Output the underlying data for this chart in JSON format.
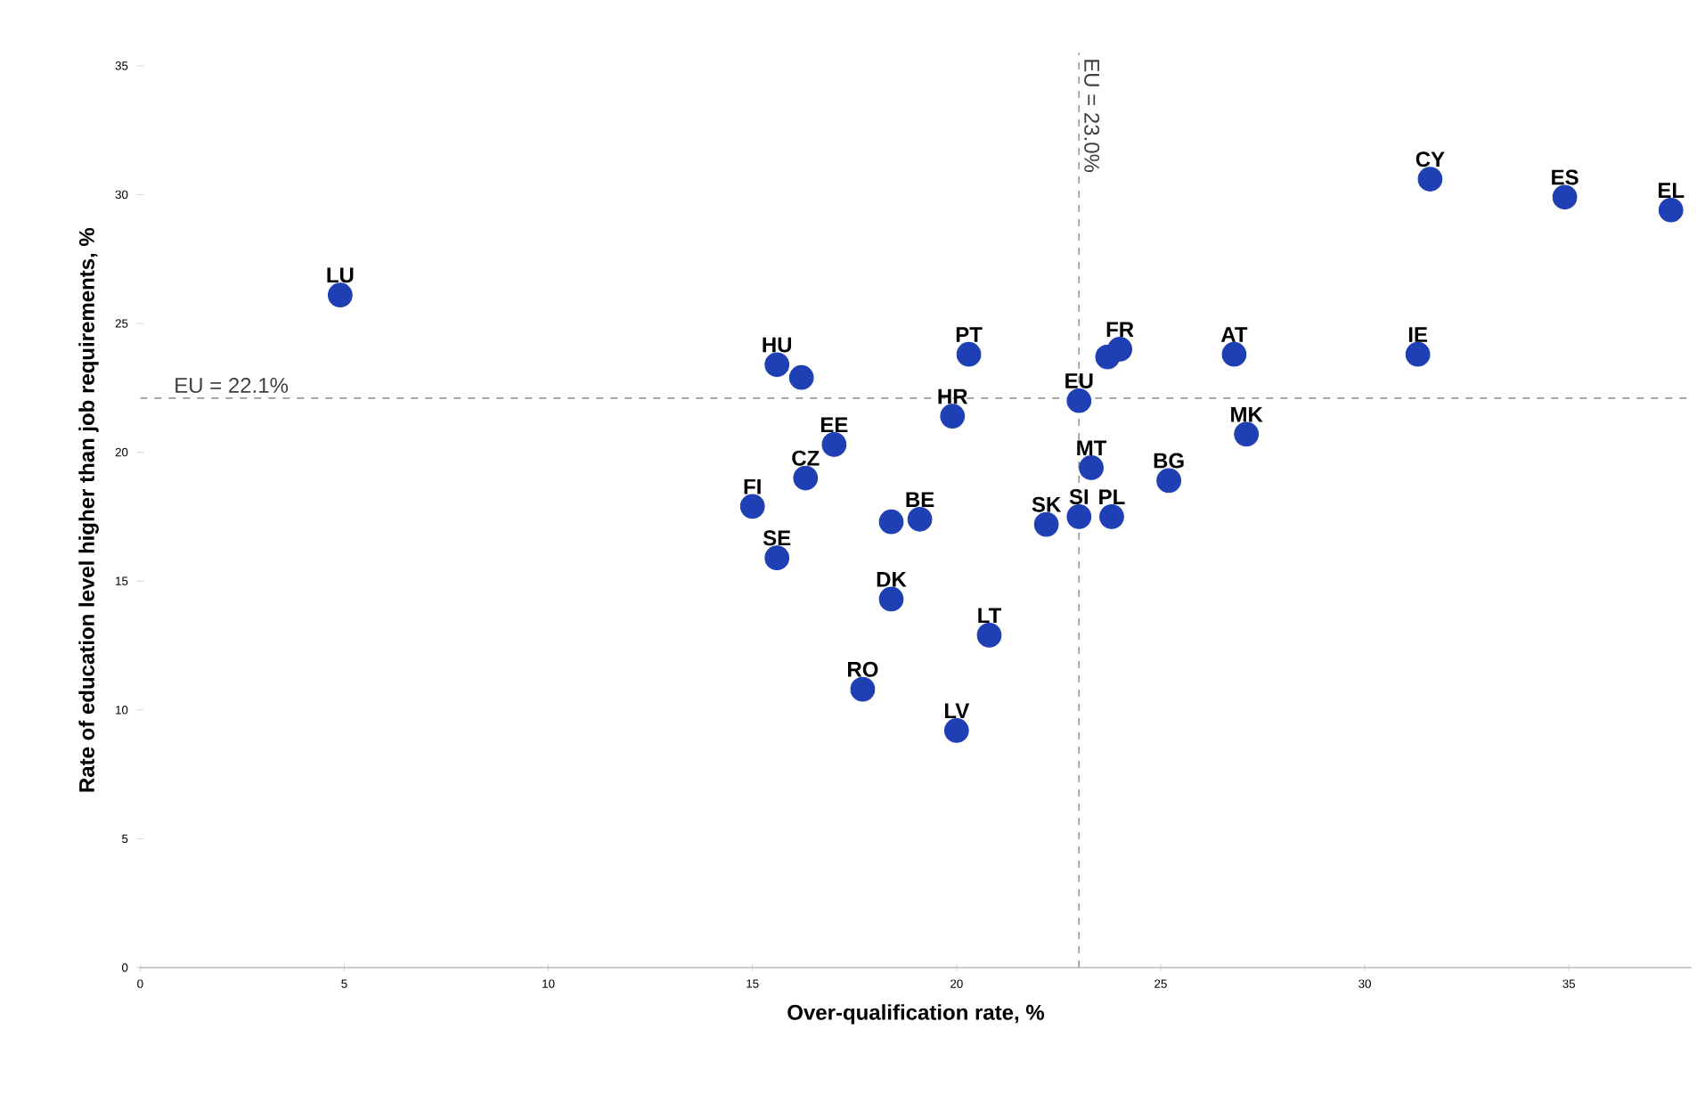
{
  "chart_data": {
    "type": "scatter",
    "xlabel": "Over-qualification rate, %",
    "ylabel": "Rate of education level higher than job requirements, %",
    "x": [
      4.9,
      15.6,
      16.2,
      17.0,
      16.3,
      15.0,
      15.6,
      31.6,
      34.9,
      37.5,
      20.3,
      23.7,
      24.0,
      26.8,
      31.3,
      23.0,
      19.9,
      27.1,
      23.3,
      25.2,
      19.1,
      18.4,
      22.2,
      23.0,
      23.8,
      18.4,
      20.8,
      17.7,
      20.0
    ],
    "values": [
      26.1,
      23.4,
      22.9,
      20.3,
      19.0,
      17.9,
      15.9,
      30.6,
      29.9,
      29.4,
      23.8,
      23.7,
      24.0,
      23.8,
      23.8,
      22.0,
      21.4,
      20.7,
      19.4,
      18.9,
      17.4,
      17.3,
      17.2,
      17.5,
      17.5,
      14.3,
      12.9,
      10.8,
      9.2
    ],
    "color": "#1f3fb4",
    "marker": "circle",
    "grid": false,
    "xlim": [
      0,
      38
    ],
    "ylim": [
      0,
      35.5
    ],
    "xticks": [
      0,
      5,
      10,
      15,
      20,
      25,
      30,
      35
    ],
    "yticks": [
      0,
      5,
      10,
      15,
      20,
      25,
      30,
      35
    ],
    "ref_lines": [
      {
        "axis": "x",
        "value": 23.0,
        "label": "EU = 23.0%",
        "color": "#9a9a9a",
        "line_style": "dashed"
      },
      {
        "axis": "y",
        "value": 22.1,
        "label": "EU = 22.1%",
        "color": "#9a9a9a",
        "line_style": "dashed"
      }
    ],
    "annotations": [
      {
        "text": "LU",
        "x": 4.9,
        "y": 26.1
      },
      {
        "text": "HU",
        "x": 15.6,
        "y": 23.4
      },
      {
        "text": "EE",
        "x": 17.0,
        "y": 20.3
      },
      {
        "text": "CZ",
        "x": 16.3,
        "y": 19.0
      },
      {
        "text": "FI",
        "x": 15.0,
        "y": 17.9
      },
      {
        "text": "SE",
        "x": 15.6,
        "y": 15.9
      },
      {
        "text": "CY",
        "x": 31.6,
        "y": 30.6
      },
      {
        "text": "ES",
        "x": 34.9,
        "y": 29.9
      },
      {
        "text": "EL",
        "x": 37.5,
        "y": 29.4
      },
      {
        "text": "PT",
        "x": 20.3,
        "y": 23.8
      },
      {
        "text": "FR",
        "x": 24.0,
        "y": 24.0
      },
      {
        "text": "AT",
        "x": 26.8,
        "y": 23.8
      },
      {
        "text": "IE",
        "x": 31.3,
        "y": 23.8
      },
      {
        "text": "EU",
        "x": 23.0,
        "y": 22.0
      },
      {
        "text": "HR",
        "x": 19.9,
        "y": 21.4
      },
      {
        "text": "MK",
        "x": 27.1,
        "y": 20.7
      },
      {
        "text": "MT",
        "x": 23.3,
        "y": 19.4
      },
      {
        "text": "BG",
        "x": 25.2,
        "y": 18.9
      },
      {
        "text": "BE",
        "x": 19.1,
        "y": 17.4
      },
      {
        "text": "SK",
        "x": 22.2,
        "y": 17.2
      },
      {
        "text": "SI",
        "x": 23.0,
        "y": 17.5
      },
      {
        "text": "PL",
        "x": 23.8,
        "y": 17.5
      },
      {
        "text": "DK",
        "x": 18.4,
        "y": 14.3
      },
      {
        "text": "LT",
        "x": 20.8,
        "y": 12.9
      },
      {
        "text": "RO",
        "x": 17.7,
        "y": 10.8
      },
      {
        "text": "LV",
        "x": 20.0,
        "y": 9.2
      }
    ]
  }
}
